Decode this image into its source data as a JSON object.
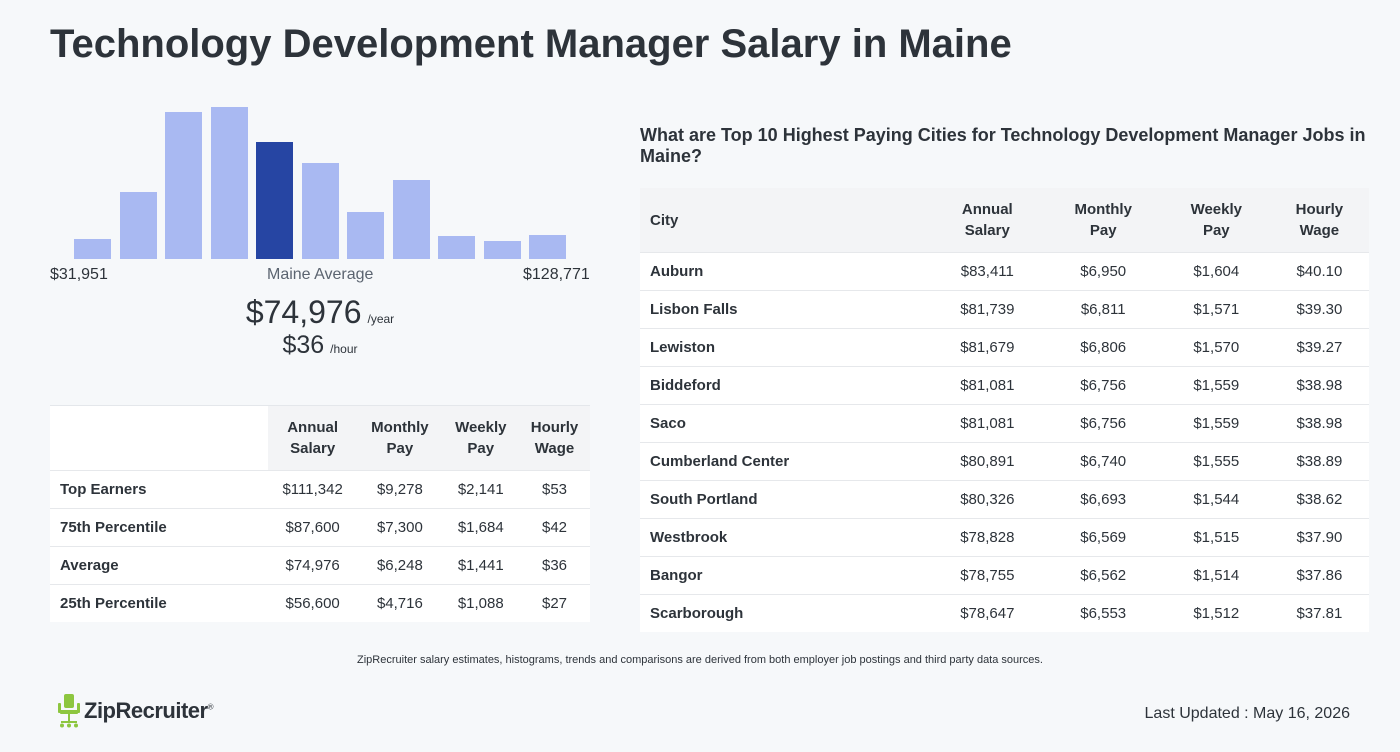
{
  "page": {
    "title": "Technology Development Manager Salary in Maine"
  },
  "histogram": {
    "min_label": "$31,951",
    "avg_label": "Maine Average",
    "max_label": "$128,771",
    "active_index": 4,
    "bar_levels": [
      0.13,
      0.44,
      0.97,
      1.0,
      0.77,
      0.63,
      0.31,
      0.52,
      0.15,
      0.12,
      0.16
    ]
  },
  "summary": {
    "annual_amount": "$74,976",
    "annual_unit": "/year",
    "hourly_amount": "$36",
    "hourly_unit": "/hour"
  },
  "percentile_table": {
    "headers": [
      [
        "Annual",
        "Salary"
      ],
      [
        "Monthly",
        "Pay"
      ],
      [
        "Weekly",
        "Pay"
      ],
      [
        "Hourly",
        "Wage"
      ]
    ],
    "rows": [
      {
        "label": "Top Earners",
        "annual": "$111,342",
        "monthly": "$9,278",
        "weekly": "$2,141",
        "hourly": "$53"
      },
      {
        "label": "75th Percentile",
        "annual": "$87,600",
        "monthly": "$7,300",
        "weekly": "$1,684",
        "hourly": "$42"
      },
      {
        "label": "Average",
        "annual": "$74,976",
        "monthly": "$6,248",
        "weekly": "$1,441",
        "hourly": "$36"
      },
      {
        "label": "25th Percentile",
        "annual": "$56,600",
        "monthly": "$4,716",
        "weekly": "$1,088",
        "hourly": "$27"
      }
    ]
  },
  "cities": {
    "heading": "What are Top 10 Highest Paying Cities for Technology Development Manager Jobs in Maine?",
    "city_header": "City",
    "headers": [
      [
        "Annual",
        "Salary"
      ],
      [
        "Monthly",
        "Pay"
      ],
      [
        "Weekly",
        "Pay"
      ],
      [
        "Hourly",
        "Wage"
      ]
    ],
    "rows": [
      {
        "label": "Auburn",
        "annual": "$83,411",
        "monthly": "$6,950",
        "weekly": "$1,604",
        "hourly": "$40.10"
      },
      {
        "label": "Lisbon Falls",
        "annual": "$81,739",
        "monthly": "$6,811",
        "weekly": "$1,571",
        "hourly": "$39.30"
      },
      {
        "label": "Lewiston",
        "annual": "$81,679",
        "monthly": "$6,806",
        "weekly": "$1,570",
        "hourly": "$39.27"
      },
      {
        "label": "Biddeford",
        "annual": "$81,081",
        "monthly": "$6,756",
        "weekly": "$1,559",
        "hourly": "$38.98"
      },
      {
        "label": "Saco",
        "annual": "$81,081",
        "monthly": "$6,756",
        "weekly": "$1,559",
        "hourly": "$38.98"
      },
      {
        "label": "Cumberland Center",
        "annual": "$80,891",
        "monthly": "$6,740",
        "weekly": "$1,555",
        "hourly": "$38.89"
      },
      {
        "label": "South Portland",
        "annual": "$80,326",
        "monthly": "$6,693",
        "weekly": "$1,544",
        "hourly": "$38.62"
      },
      {
        "label": "Westbrook",
        "annual": "$78,828",
        "monthly": "$6,569",
        "weekly": "$1,515",
        "hourly": "$37.90"
      },
      {
        "label": "Bangor",
        "annual": "$78,755",
        "monthly": "$6,562",
        "weekly": "$1,514",
        "hourly": "$37.86"
      },
      {
        "label": "Scarborough",
        "annual": "$78,647",
        "monthly": "$6,553",
        "weekly": "$1,512",
        "hourly": "$37.81"
      }
    ]
  },
  "footer": {
    "disclaimer": "ZipRecruiter salary estimates, histograms, trends and comparisons are derived from both employer job postings and third party data sources.",
    "logo_text": "ZipRecruiter",
    "logo_mark": "®",
    "logo_icon": "chair-icon",
    "updated": "Last Updated : May 16, 2026"
  },
  "colors": {
    "bar": "#a9b9f2",
    "bar_active": "#2645a3",
    "logo_green": "#8dc63f"
  }
}
